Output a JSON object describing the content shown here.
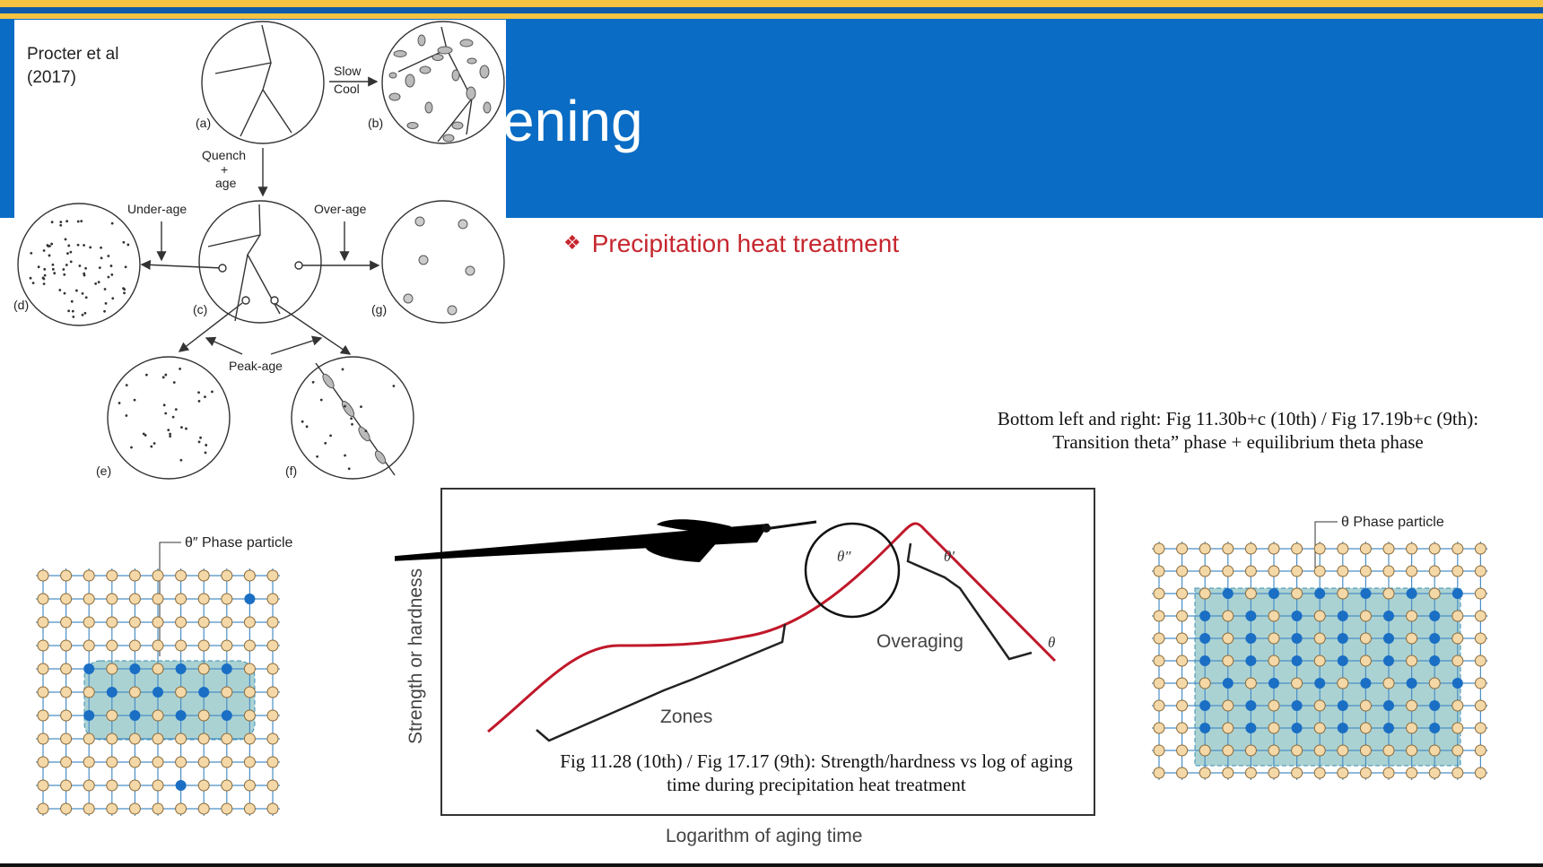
{
  "slide": {
    "title_fragment": "ening",
    "bullet": "Precipitation heat treatment",
    "bullet_icon": "four-diamond-icon",
    "accent_color": "#0a6cc4",
    "bullet_color": "#c6262e"
  },
  "micrograph_figure": {
    "citation": "Procter et al\n(2017)",
    "labels": {
      "a": "(a)",
      "b": "(b)",
      "c": "(c)",
      "d": "(d)",
      "e": "(e)",
      "f": "(f)",
      "g": "(g)",
      "slow": "Slow",
      "cool": "Cool",
      "quench": "Quench",
      "plus": "+",
      "age": "age",
      "under_age": "Under-age",
      "over_age": "Over-age",
      "peak_age": "Peak-age"
    }
  },
  "lattice_left": {
    "label": "θ″ Phase particle"
  },
  "lattice_right": {
    "label": "θ Phase particle"
  },
  "aging_chart": {
    "ylabel": "Strength or hardness",
    "xlabel": "Logarithm of aging time",
    "labels": {
      "theta_dd": "θ″",
      "theta_d": "θ′",
      "theta": "θ",
      "overaging": "Overaging",
      "zones": "Zones"
    },
    "curve_color": "#c0182a"
  },
  "captions": {
    "right": "Bottom left and right: Fig 11.30b+c (10th) / Fig 17.19b+c (9th): Transition theta” phase + equilibrium theta phase",
    "center": "Fig 11.28 (10th) / Fig 17.17 (9th): Strength/hardness vs log of aging time during precipitation heat treatment"
  }
}
